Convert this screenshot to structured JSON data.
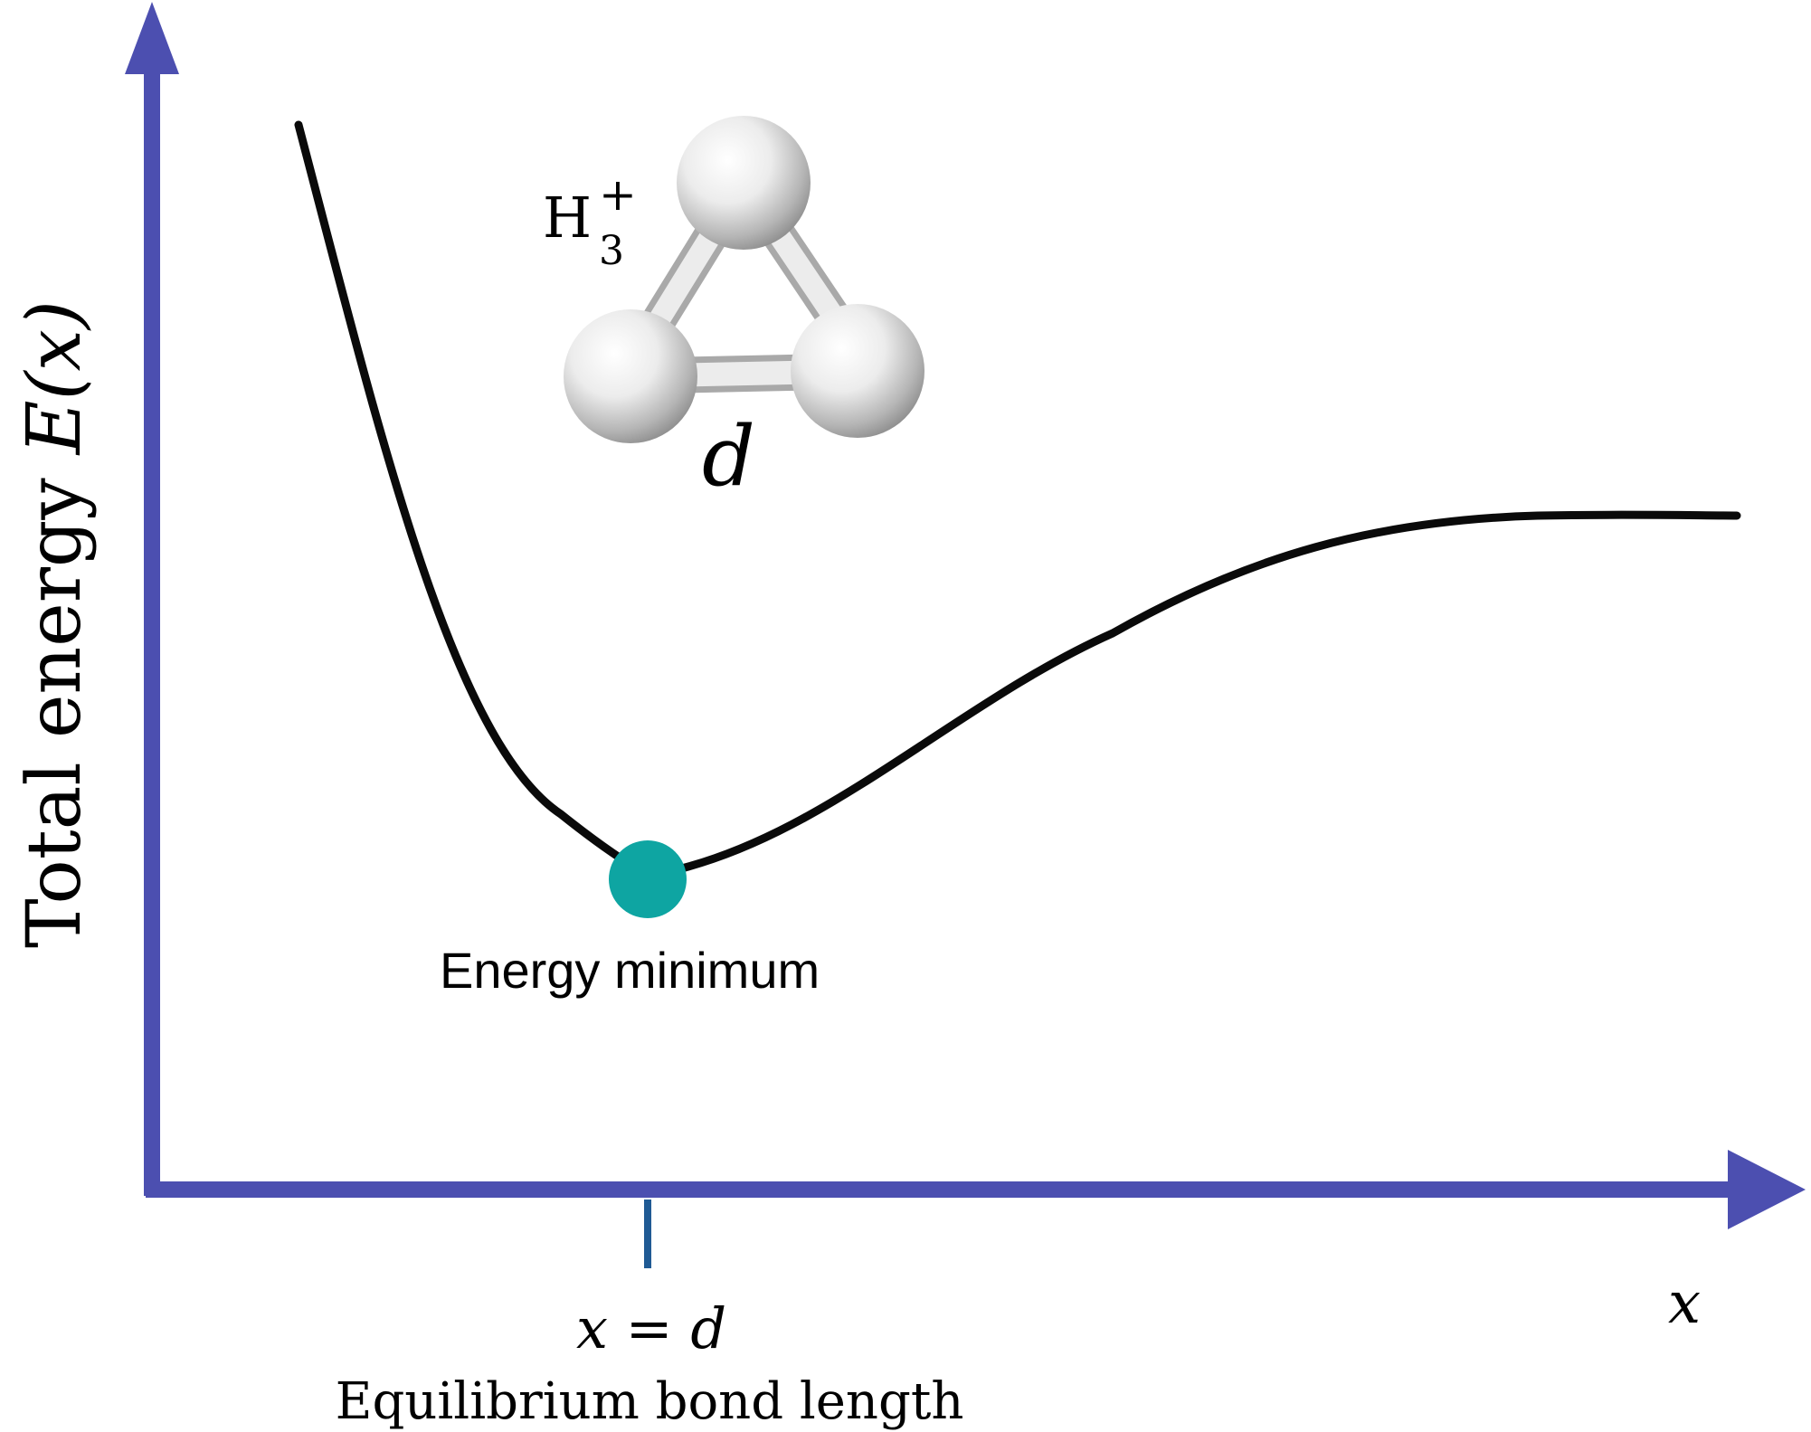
{
  "y_axis_label": {
    "text": "Total energy ",
    "math": "E(x)"
  },
  "x_axis_label": "x",
  "molecule": {
    "formula_base": "H",
    "formula_subscript": "3",
    "formula_superscript": "+",
    "bond_label": "d"
  },
  "minimum": {
    "label": "Energy minimum",
    "marker_color": "#0ea5a2"
  },
  "x_tick": {
    "equation": "x = d",
    "caption": "Equilibrium bond length"
  },
  "colors": {
    "axis": "#4c4fb0",
    "curve": "#0a0a0a",
    "tick": "#1f5a94"
  }
}
